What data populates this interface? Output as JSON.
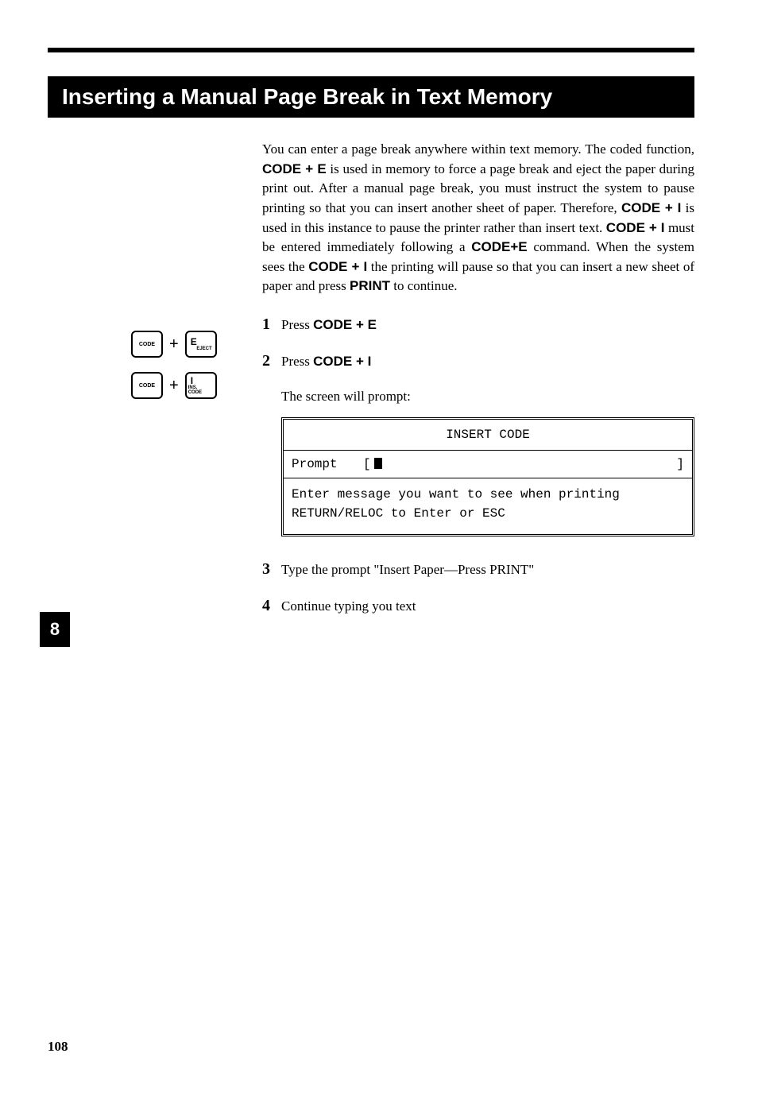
{
  "heading": "Inserting a Manual Page Break in Text Memory",
  "intro": {
    "t1": "You can enter a page break anywhere within text memory. The coded function, ",
    "b1": "CODE + E",
    "t2": " is used in memory to force a page break and eject the paper during print out. After a manual page break, you must instruct the system to pause printing so that you can insert another sheet of paper. Therefore, ",
    "b2": "CODE + I",
    "t3": " is used in this instance to pause the printer rather than insert text. ",
    "b3": "CODE + I",
    "t4": " must be entered immediately following a ",
    "b4": "CODE+E",
    "t5": " command. When the system sees the ",
    "b5": "CODE + I",
    "t6": " the printing will pause so that you can insert a new sheet of paper and press ",
    "b6": "PRINT",
    "t7": " to continue."
  },
  "keys": {
    "code": "CODE",
    "plus": "+",
    "e_top": "E",
    "e_bottom": "EJECT",
    "i_top": "I",
    "i_bottom": "INS. CODE"
  },
  "steps": {
    "n1": "1",
    "s1a": "Press ",
    "s1b": "CODE + E",
    "n2": "2",
    "s2a": "Press ",
    "s2b": "CODE + I",
    "sub2": "The screen will prompt:",
    "n3": "3",
    "s3": "Type the prompt \"Insert Paper—Press PRINT\"",
    "n4": "4",
    "s4": "Continue typing you text"
  },
  "screen": {
    "title": "INSERT CODE",
    "prompt_label": "Prompt",
    "open_bracket": "[",
    "close_bracket": "]",
    "msg1": "Enter message you want to see when printing",
    "msg2": "RETURN/RELOC to Enter or ESC"
  },
  "side_tab": "8",
  "page_number": "108"
}
